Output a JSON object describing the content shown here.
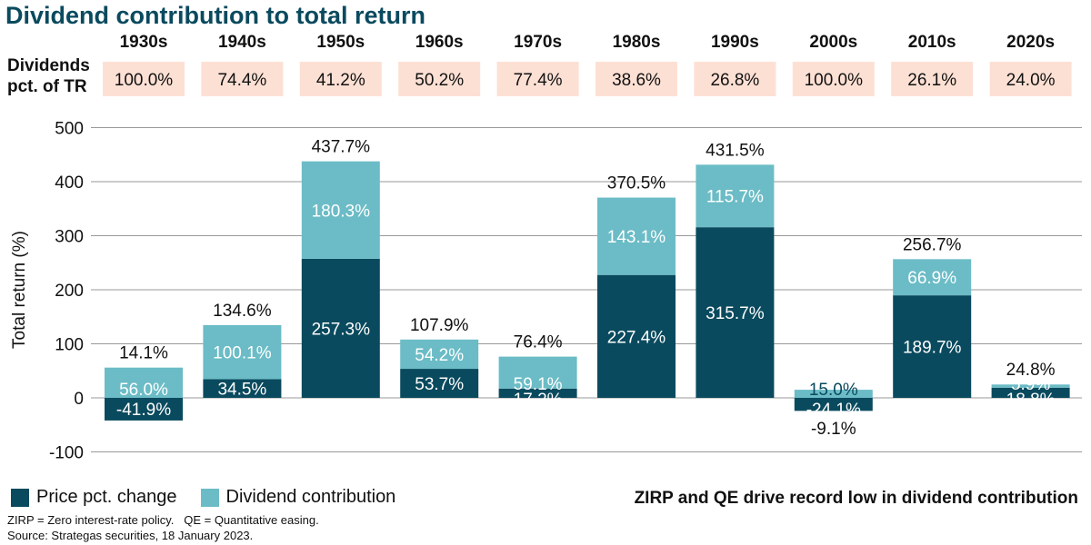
{
  "chart_data": {
    "type": "bar",
    "stacked": true,
    "title": "Dividend contribution to total return",
    "ylabel": "Total return (%)",
    "ylim": [
      -100,
      500
    ],
    "yticks": [
      -100,
      0,
      100,
      200,
      300,
      400,
      500
    ],
    "grid": true,
    "legend_position": "bottom-left",
    "categories": [
      "1930s",
      "1940s",
      "1950s",
      "1960s",
      "1970s",
      "1980s",
      "1990s",
      "2000s",
      "2010s",
      "2020s"
    ],
    "series": [
      {
        "name": "Price pct. change",
        "color": "#0a4a5e",
        "values": [
          -41.9,
          34.5,
          257.3,
          53.7,
          17.2,
          227.4,
          315.7,
          -24.1,
          189.7,
          18.8
        ],
        "labels": [
          "-41.9%",
          "34.5%",
          "257.3%",
          "53.7%",
          "17.2%",
          "227.4%",
          "315.7%",
          "-24.1%",
          "189.7%",
          "18.8%"
        ]
      },
      {
        "name": "Dividend contribution",
        "color": "#6bbcc6",
        "values": [
          56.0,
          100.1,
          180.3,
          54.2,
          59.1,
          143.1,
          115.7,
          15.0,
          66.9,
          5.9
        ],
        "labels": [
          "56.0%",
          "100.1%",
          "180.3%",
          "54.2%",
          "59.1%",
          "143.1%",
          "115.7%",
          "15.0%",
          "66.9%",
          "5.9%"
        ]
      }
    ],
    "totals": [
      14.1,
      134.6,
      437.7,
      107.9,
      76.4,
      370.5,
      431.5,
      -9.1,
      256.7,
      24.8
    ],
    "total_labels": [
      "14.1%",
      "134.6%",
      "437.7%",
      "107.9%",
      "76.4%",
      "370.5%",
      "431.5%",
      "-9.1%",
      "256.7%",
      "24.8%"
    ],
    "dividend_pct_label": "Dividends pct. of TR",
    "dividend_pct_label_lines": [
      "Dividends",
      "pct. of TR"
    ],
    "dividend_pct": [
      "100.0%",
      "74.4%",
      "41.2%",
      "50.2%",
      "77.4%",
      "38.6%",
      "26.8%",
      "100.0%",
      "26.1%",
      "24.0%"
    ],
    "dividend_pct_box_color": "#fde0d4"
  },
  "note": "ZIRP and QE drive record low in dividend contribution",
  "footnotes": [
    "ZIRP = Zero interest-rate policy.   QE = Quantitative easing.",
    "Source: Strategas securities, 18 January 2023."
  ]
}
